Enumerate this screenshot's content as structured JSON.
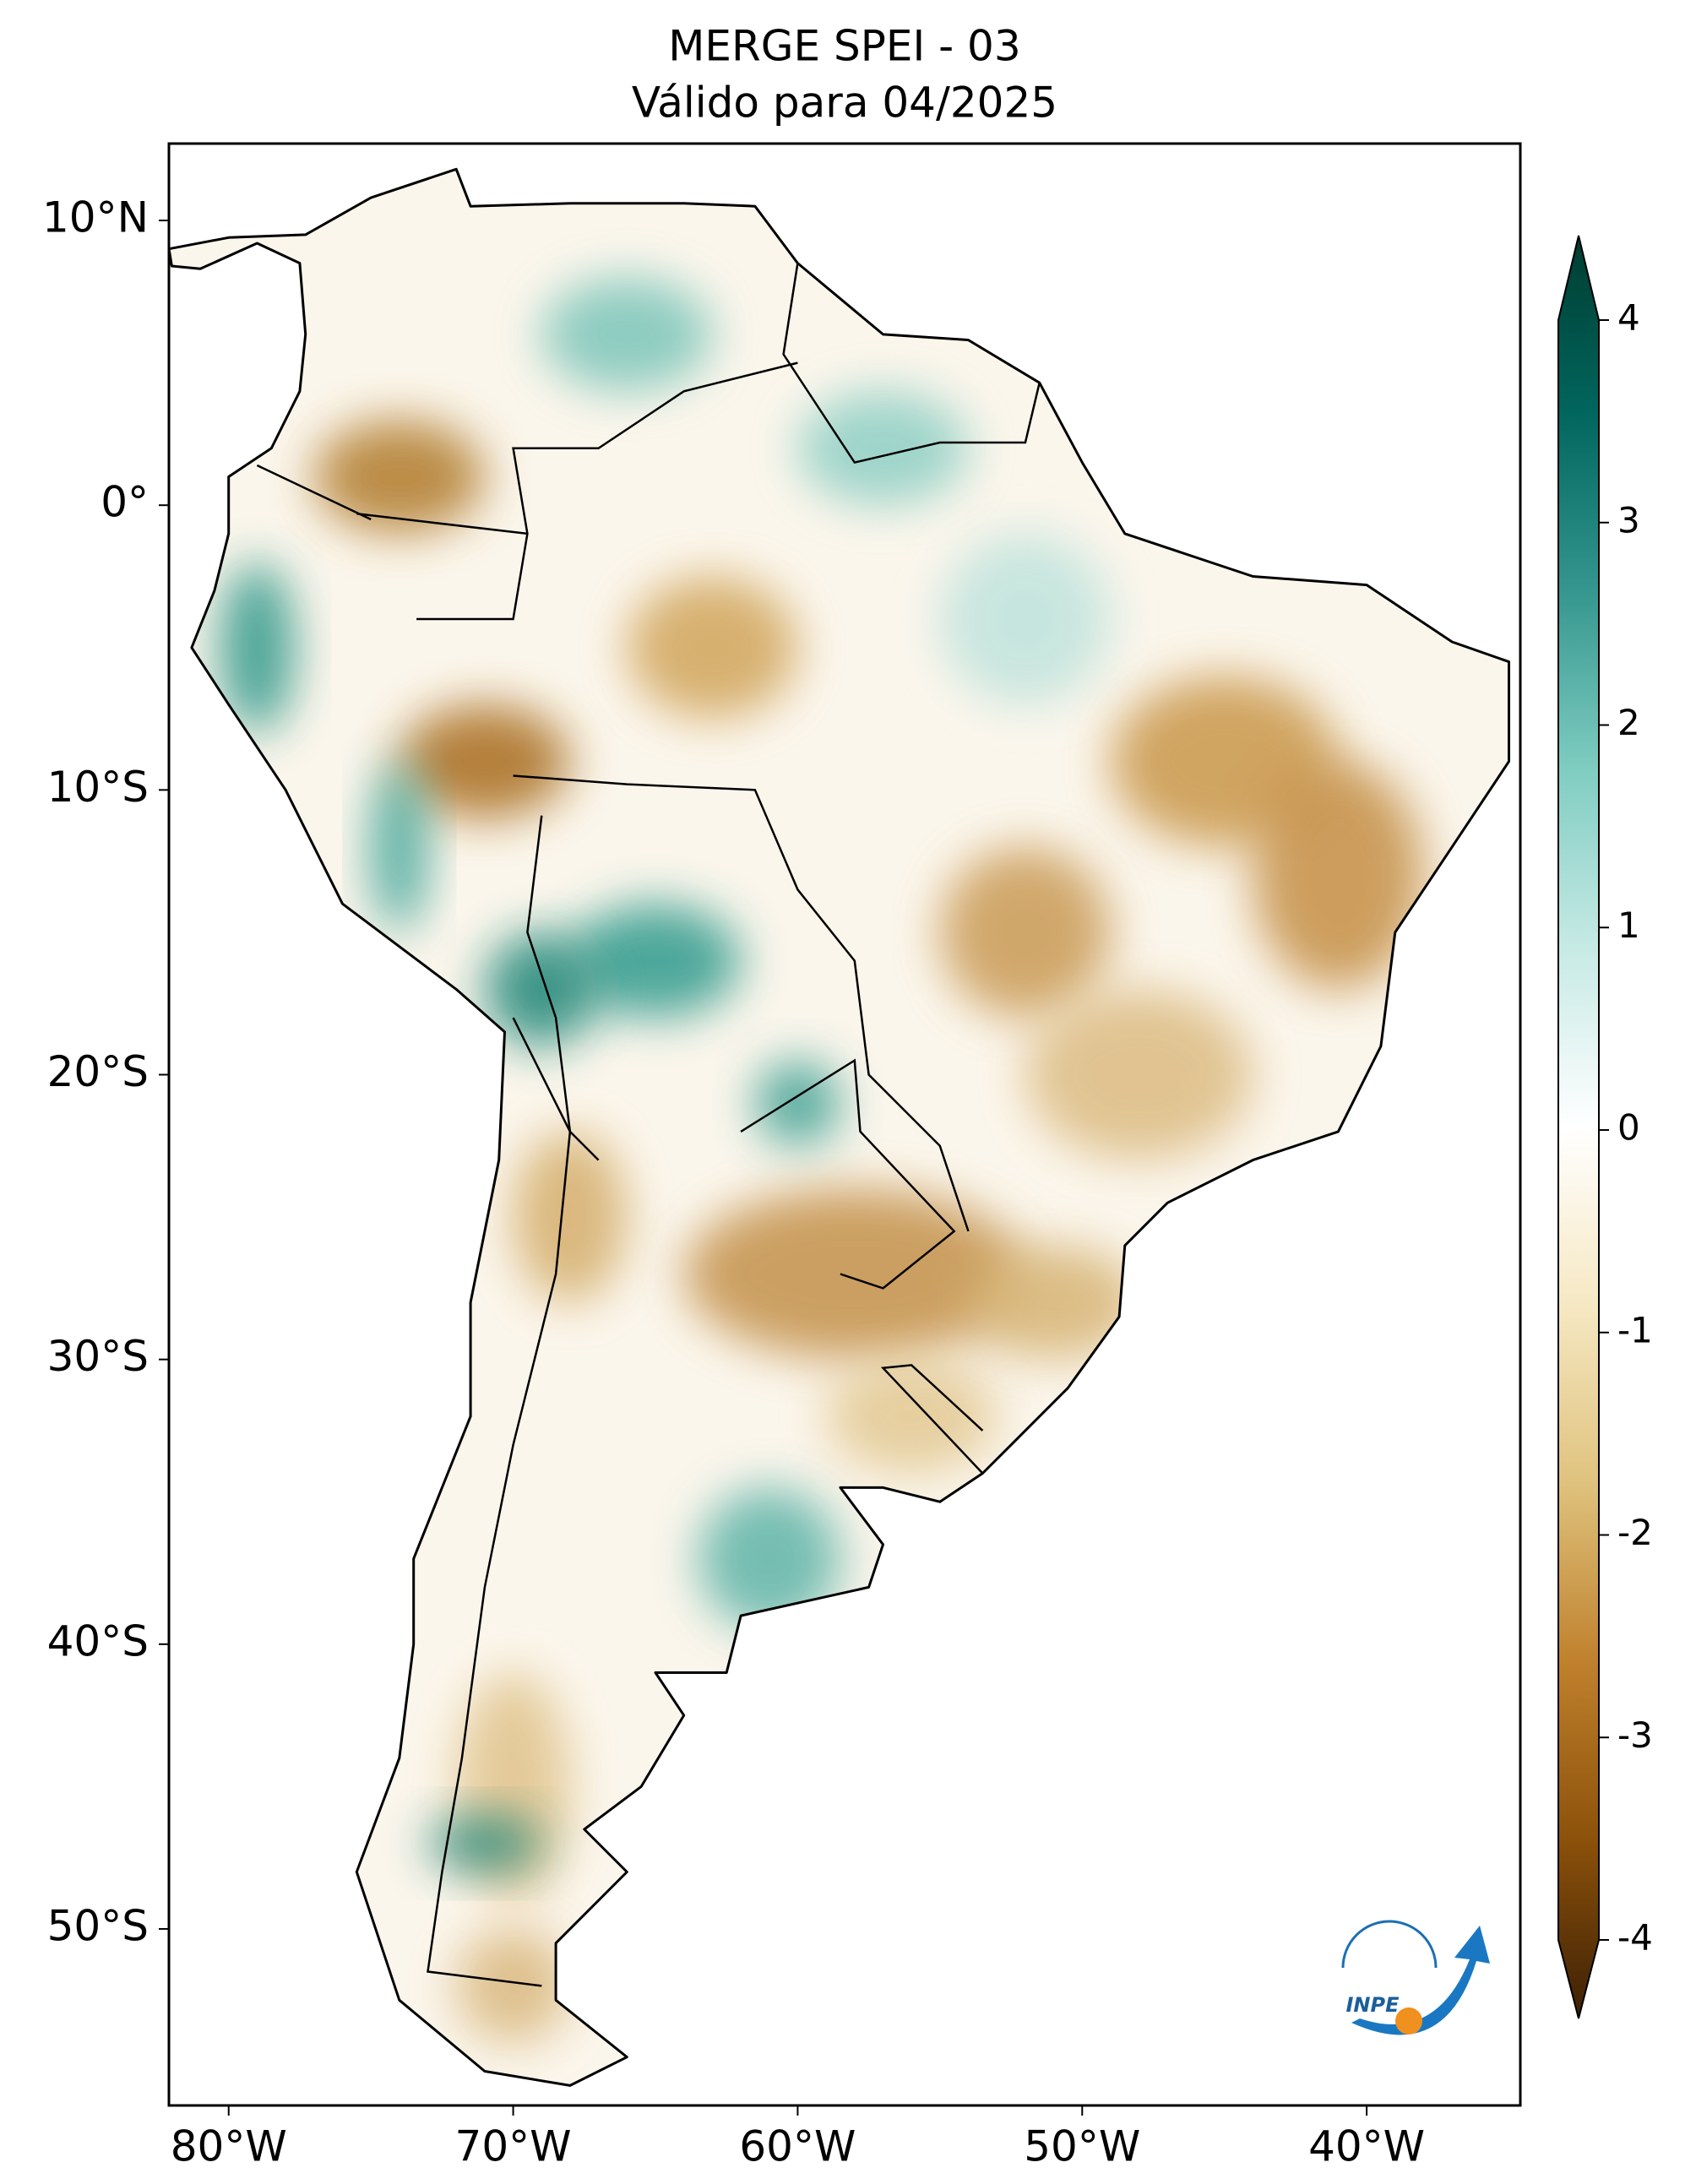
{
  "chart_data": {
    "type": "map",
    "title": "MERGE   SPEI - 03",
    "subtitle": "Válido para 04/2025",
    "xlim": [
      -82.1,
      -34.6
    ],
    "ylim": [
      -56.2,
      12.7
    ],
    "xticks": [
      {
        "value": -80,
        "label": "80°W"
      },
      {
        "value": -70,
        "label": "70°W"
      },
      {
        "value": -60,
        "label": "60°W"
      },
      {
        "value": -50,
        "label": "50°W"
      },
      {
        "value": -40,
        "label": "40°W"
      }
    ],
    "yticks": [
      {
        "value": 10,
        "label": "10°N"
      },
      {
        "value": 0,
        "label": "0°"
      },
      {
        "value": -10,
        "label": "10°S"
      },
      {
        "value": -20,
        "label": "20°S"
      },
      {
        "value": -30,
        "label": "30°S"
      },
      {
        "value": -40,
        "label": "40°S"
      },
      {
        "value": -50,
        "label": "50°S"
      }
    ],
    "colorbar": {
      "clim": [
        -4,
        4
      ],
      "ticks": [
        4,
        3,
        2,
        1,
        0,
        -1,
        -2,
        -3,
        -4
      ],
      "colors": [
        "#3c2005",
        "#8c510a",
        "#bf812d",
        "#dfc27d",
        "#f6e8c3",
        "#ffffff",
        "#c7eae5",
        "#80cdc1",
        "#35978f",
        "#01665e",
        "#003c30"
      ]
    },
    "logo_text": "INPE"
  }
}
